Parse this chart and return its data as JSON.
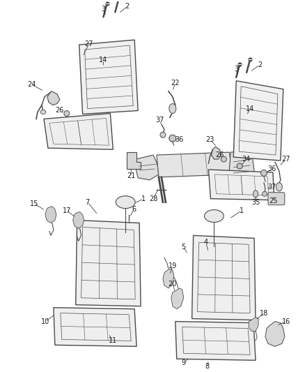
{
  "bg_color": "#ffffff",
  "line_color": "#4a4a4a",
  "label_color": "#1a1a1a",
  "fig_width": 4.38,
  "fig_height": 5.33,
  "dpi": 100
}
